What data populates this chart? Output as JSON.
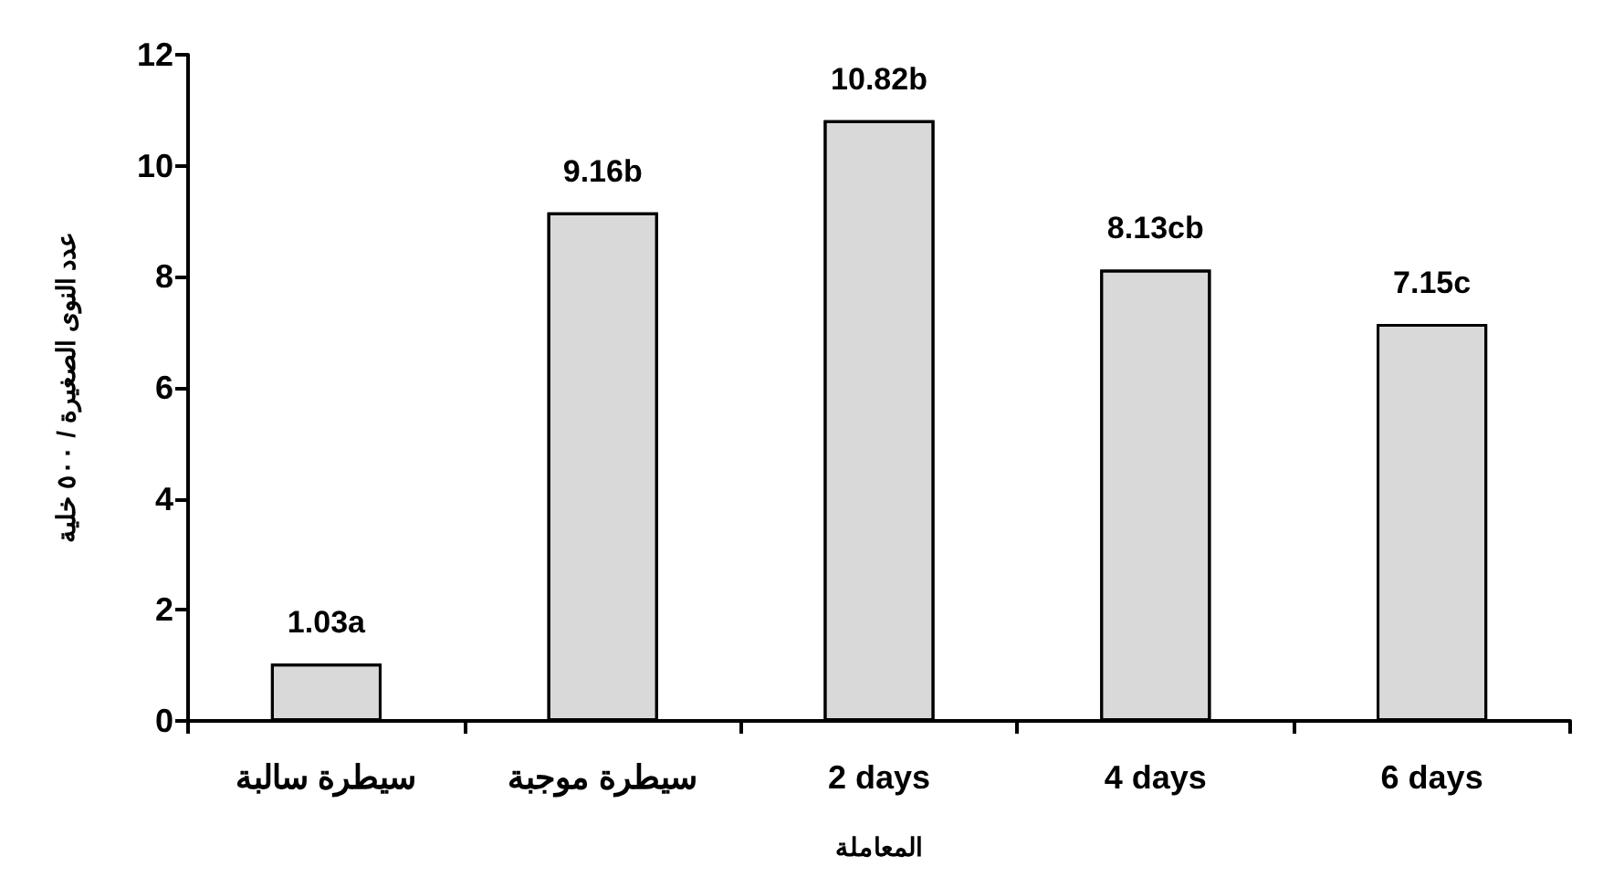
{
  "chart_data": {
    "type": "bar",
    "xlabel": "المعاملة",
    "ylabel": "عدد النوى الصغيرة / ٥٠٠ خلية",
    "categories": [
      "سيطرة سالبة",
      "سيطرة موجبة",
      "2 days",
      "4 days",
      "6 days"
    ],
    "values": [
      1.03,
      9.16,
      10.82,
      8.13,
      7.15
    ],
    "value_labels": [
      "1.03a",
      "9.16b",
      "10.82b",
      "8.13cb",
      "7.15c"
    ],
    "color": "#d9d9d9",
    "ylim": [
      0,
      12
    ],
    "yticks": [
      0,
      2,
      4,
      6,
      8,
      10,
      12
    ]
  }
}
